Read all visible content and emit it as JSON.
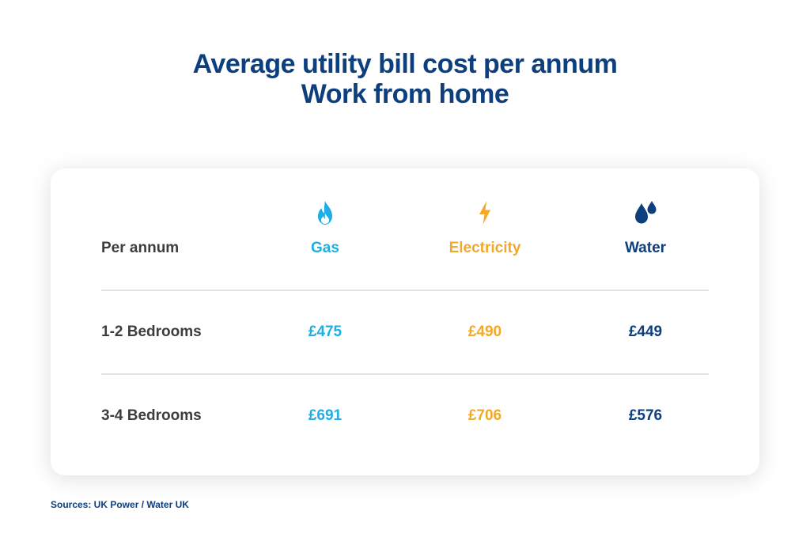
{
  "title": {
    "line1": "Average utility bill cost per annum",
    "line2": "Work from home"
  },
  "table": {
    "corner_label": "Per annum",
    "columns": [
      {
        "label": "Gas",
        "icon": "flame-icon",
        "color": "#1eaee3"
      },
      {
        "label": "Electricity",
        "icon": "lightning-bolt-icon",
        "color": "#f3a829"
      },
      {
        "label": "Water",
        "icon": "water-drops-icon",
        "color": "#0d3e7e"
      }
    ],
    "rows": [
      {
        "label": "1-2 Bedrooms",
        "values": [
          "£475",
          "£490",
          "£449"
        ]
      },
      {
        "label": "3-4 Bedrooms",
        "values": [
          "£691",
          "£706",
          "£576"
        ]
      }
    ]
  },
  "source": "Sources: UK Power / Water UK",
  "chart_data": {
    "type": "table",
    "title": "Average utility bill cost per annum",
    "subtitle": "Work from home",
    "row_header": "Per annum",
    "columns": [
      "Gas",
      "Electricity",
      "Water"
    ],
    "rows": [
      {
        "label": "1-2 Bedrooms",
        "values": [
          475,
          490,
          449
        ]
      },
      {
        "label": "3-4 Bedrooms",
        "values": [
          691,
          706,
          576
        ]
      }
    ],
    "unit": "£"
  }
}
